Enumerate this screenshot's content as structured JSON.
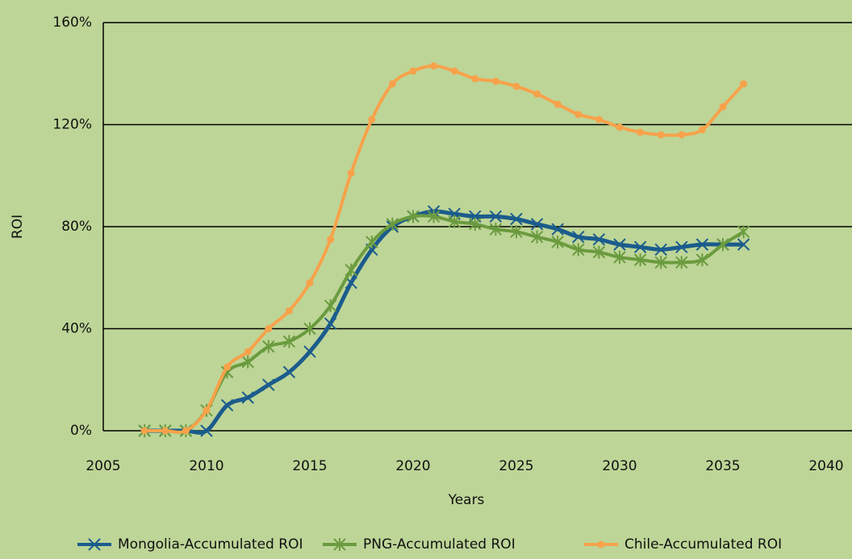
{
  "chart_data": {
    "type": "line",
    "y_label": "ROI",
    "x_label": "Years",
    "x": [
      2007,
      2008,
      2009,
      2010,
      2011,
      2012,
      2013,
      2014,
      2015,
      2016,
      2017,
      2018,
      2019,
      2020,
      2021,
      2022,
      2023,
      2024,
      2025,
      2026,
      2027,
      2028,
      2029,
      2030,
      2031,
      2032,
      2033,
      2034,
      2035,
      2036
    ],
    "series": [
      {
        "name": "Mongolia-Accumulated ROI",
        "color": "#1b5c8c",
        "marker": "x",
        "values": [
          0,
          0,
          0,
          0,
          10,
          13,
          18,
          23,
          31,
          42,
          58,
          71,
          80,
          84,
          86,
          85,
          84,
          84,
          83,
          81,
          79,
          76,
          75,
          73,
          72,
          71,
          72,
          73,
          73,
          73
        ]
      },
      {
        "name": "PNG-Accumulated ROI",
        "color": "#6b9b3e",
        "marker": "star",
        "values": [
          0,
          0,
          0,
          8,
          23,
          27,
          33,
          35,
          40,
          49,
          63,
          74,
          81,
          84,
          84,
          82,
          81,
          79,
          78,
          76,
          74,
          71,
          70,
          68,
          67,
          66,
          66,
          67,
          73,
          78
        ]
      },
      {
        "name": "Chile-Accumulated ROI",
        "color": "#f7a24b",
        "marker": "circle",
        "values": [
          0,
          0,
          0,
          8,
          25,
          31,
          40,
          47,
          58,
          75,
          101,
          122,
          136,
          141,
          143,
          141,
          138,
          137,
          135,
          132,
          128,
          124,
          122,
          119,
          117,
          116,
          116,
          118,
          127,
          136
        ]
      }
    ],
    "xlim": [
      2005,
      2040
    ],
    "xticks": [
      2005,
      2010,
      2015,
      2020,
      2025,
      2030,
      2035,
      2040
    ],
    "ylim": [
      0,
      160
    ],
    "yticks": [
      {
        "value": 0,
        "label": "0%"
      },
      {
        "value": 40,
        "label": "40%"
      },
      {
        "value": 80,
        "label": "80%"
      },
      {
        "value": 120,
        "label": "120%"
      },
      {
        "value": 160,
        "label": "160%"
      }
    ],
    "grid": true,
    "legend": "bottom"
  }
}
